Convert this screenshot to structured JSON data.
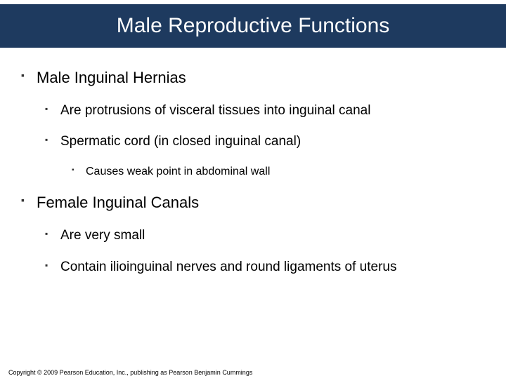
{
  "slide": {
    "title": "Male Reproductive Functions",
    "title_bg": "#1e3a5f",
    "title_color": "#ffffff",
    "title_fontsize": 30,
    "body_color": "#000000",
    "bullet_color": "#333333",
    "background_color": "#ffffff"
  },
  "bullets": {
    "b1": "Male Inguinal Hernias",
    "b1_1": "Are protrusions of visceral tissues into inguinal canal",
    "b1_2": "Spermatic cord (in closed inguinal canal)",
    "b1_2_1": "Causes weak point in abdominal wall",
    "b2": "Female Inguinal Canals",
    "b2_1": "Are very small",
    "b2_2": "Contain ilioinguinal nerves and round ligaments of uterus"
  },
  "footer": {
    "copyright": "Copyright © 2009 Pearson Education, Inc., publishing as Pearson Benjamin Cummings"
  }
}
